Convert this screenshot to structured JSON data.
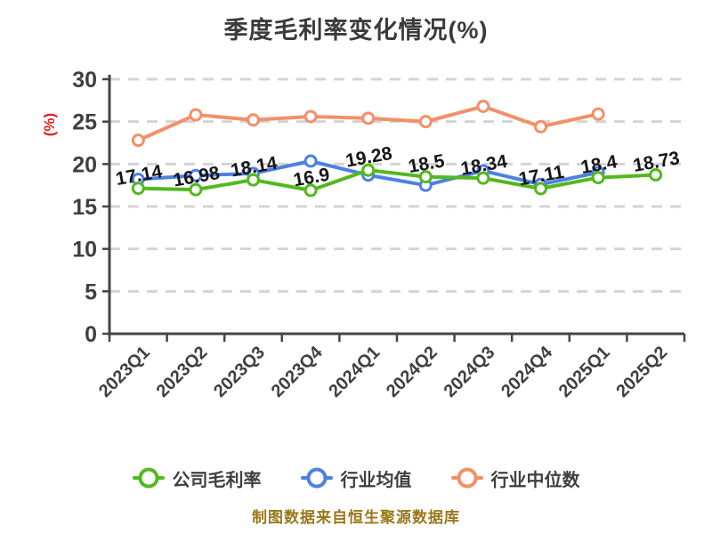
{
  "page": {
    "title": "季度毛利率变化情况(%)",
    "caption": "制图数据来自恒生聚源数据库"
  },
  "style": {
    "title_color": "#3b3b3b",
    "axis_color": "#454545",
    "tick_label_color": "#3f3f3f",
    "grid_color": "#d4d4d4",
    "data_label_color": "#151515",
    "ylabel_color": "#e02020",
    "caption_color": "#9a771b",
    "marker_fill": "#ffffff"
  },
  "chart_data": {
    "type": "line",
    "title": "季度毛利率变化情况(%)",
    "xlabel": "",
    "ylabel": "(%)",
    "ylim": [
      0,
      30
    ],
    "yticks": [
      0,
      5,
      10,
      15,
      20,
      25,
      30
    ],
    "grid": "horizontal-dashed",
    "legend_position": "bottom",
    "categories": [
      "2023Q1",
      "2023Q2",
      "2023Q3",
      "2023Q4",
      "2024Q1",
      "2024Q2",
      "2024Q3",
      "2024Q4",
      "2025Q1",
      "2025Q2"
    ],
    "series": [
      {
        "name": "公司毛利率",
        "color": "#52b81e",
        "values": [
          17.14,
          16.98,
          18.14,
          16.9,
          19.28,
          18.5,
          18.34,
          17.11,
          18.4,
          18.73
        ],
        "point_labels": [
          "17.14",
          "16.98",
          "18.14",
          "16.9",
          "19.28",
          "18.5",
          "18.34",
          "17.11",
          "18.4",
          "18.73"
        ]
      },
      {
        "name": "行业均值",
        "color": "#4e80e4",
        "values": [
          18.2,
          18.65,
          18.9,
          20.35,
          18.7,
          17.5,
          19.2,
          17.6,
          19.0,
          null
        ],
        "point_labels": null
      },
      {
        "name": "行业中位数",
        "color": "#f48f68",
        "values": [
          22.8,
          25.8,
          25.2,
          25.6,
          25.4,
          25.0,
          26.8,
          24.4,
          25.9,
          null
        ],
        "point_labels": null
      }
    ]
  }
}
